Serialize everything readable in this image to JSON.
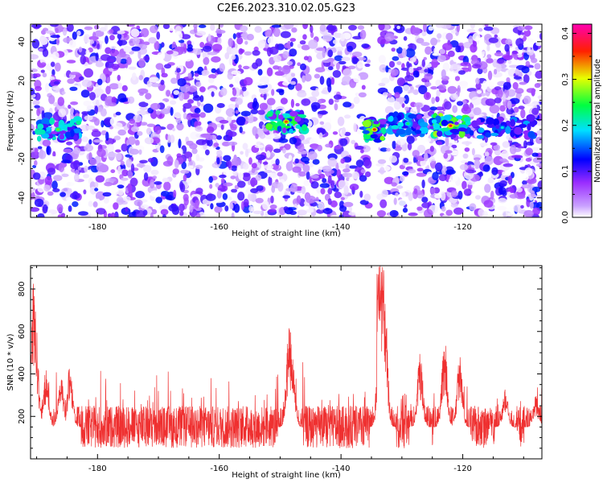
{
  "title": "C2E6.2023.310.02.05.G23",
  "chart_data": [
    {
      "type": "heatmap",
      "xlabel": "Height of straight line (km)",
      "ylabel": "Frequency (Hz)",
      "xlim": [
        -191,
        -107
      ],
      "ylim": [
        -50,
        49
      ],
      "x_ticks": [
        -180,
        -160,
        -140,
        -120
      ],
      "y_ticks": [
        -40,
        -20,
        0,
        20,
        40
      ],
      "colorbar": {
        "label": "Normalized spectral amplitude",
        "range": [
          0,
          0.42
        ],
        "ticks": [
          0.0,
          0.1,
          0.2,
          0.3,
          0.4
        ],
        "colors": [
          "#ffffff",
          "#9a2cff",
          "#0000ff",
          "#00e0ff",
          "#00ff40",
          "#e8ff00",
          "#ff2000",
          "#ff00b0"
        ]
      },
      "signal_bands": [
        {
          "x_range": [
            -190,
            -183
          ],
          "freq_hz": -5,
          "peak_amplitude": 0.22
        },
        {
          "x_range": [
            -152,
            -146
          ],
          "freq_hz": -1,
          "peak_amplitude": 0.32
        },
        {
          "x_range": [
            -136,
            -133
          ],
          "freq_hz": -5,
          "peak_amplitude": 0.33
        },
        {
          "x_range": [
            -132,
            -126
          ],
          "freq_hz": -2,
          "peak_amplitude": 0.18
        },
        {
          "x_range": [
            -125,
            -119
          ],
          "freq_hz": -3,
          "peak_amplitude": 0.36
        },
        {
          "x_range": [
            -119,
            -108
          ],
          "freq_hz": -4,
          "peak_amplitude": 0.15
        }
      ],
      "gap_x": -134.5
    },
    {
      "type": "line",
      "xlabel": "Height of straight line (km)",
      "ylabel": "SNR (10 * v/v)",
      "xlim": [
        -191,
        -107
      ],
      "ylim": [
        0,
        910
      ],
      "x_ticks": [
        -180,
        -160,
        -140,
        -120
      ],
      "y_ticks": [
        200,
        400,
        600,
        800
      ],
      "series": [
        {
          "color": "#ef3030"
        }
      ],
      "baseline": 150,
      "peaks": [
        {
          "x": -190.5,
          "y": 880
        },
        {
          "x": -190.2,
          "y": 690
        },
        {
          "x": -188.5,
          "y": 450
        },
        {
          "x": -186.0,
          "y": 430
        },
        {
          "x": -184.5,
          "y": 460
        },
        {
          "x": -148.5,
          "y": 680
        },
        {
          "x": -148.0,
          "y": 520
        },
        {
          "x": -133.5,
          "y": 910
        },
        {
          "x": -132.8,
          "y": 760
        },
        {
          "x": -127.0,
          "y": 500
        },
        {
          "x": -123.0,
          "y": 580
        },
        {
          "x": -120.5,
          "y": 500
        },
        {
          "x": -113.0,
          "y": 330
        },
        {
          "x": -108.0,
          "y": 300
        }
      ]
    }
  ]
}
